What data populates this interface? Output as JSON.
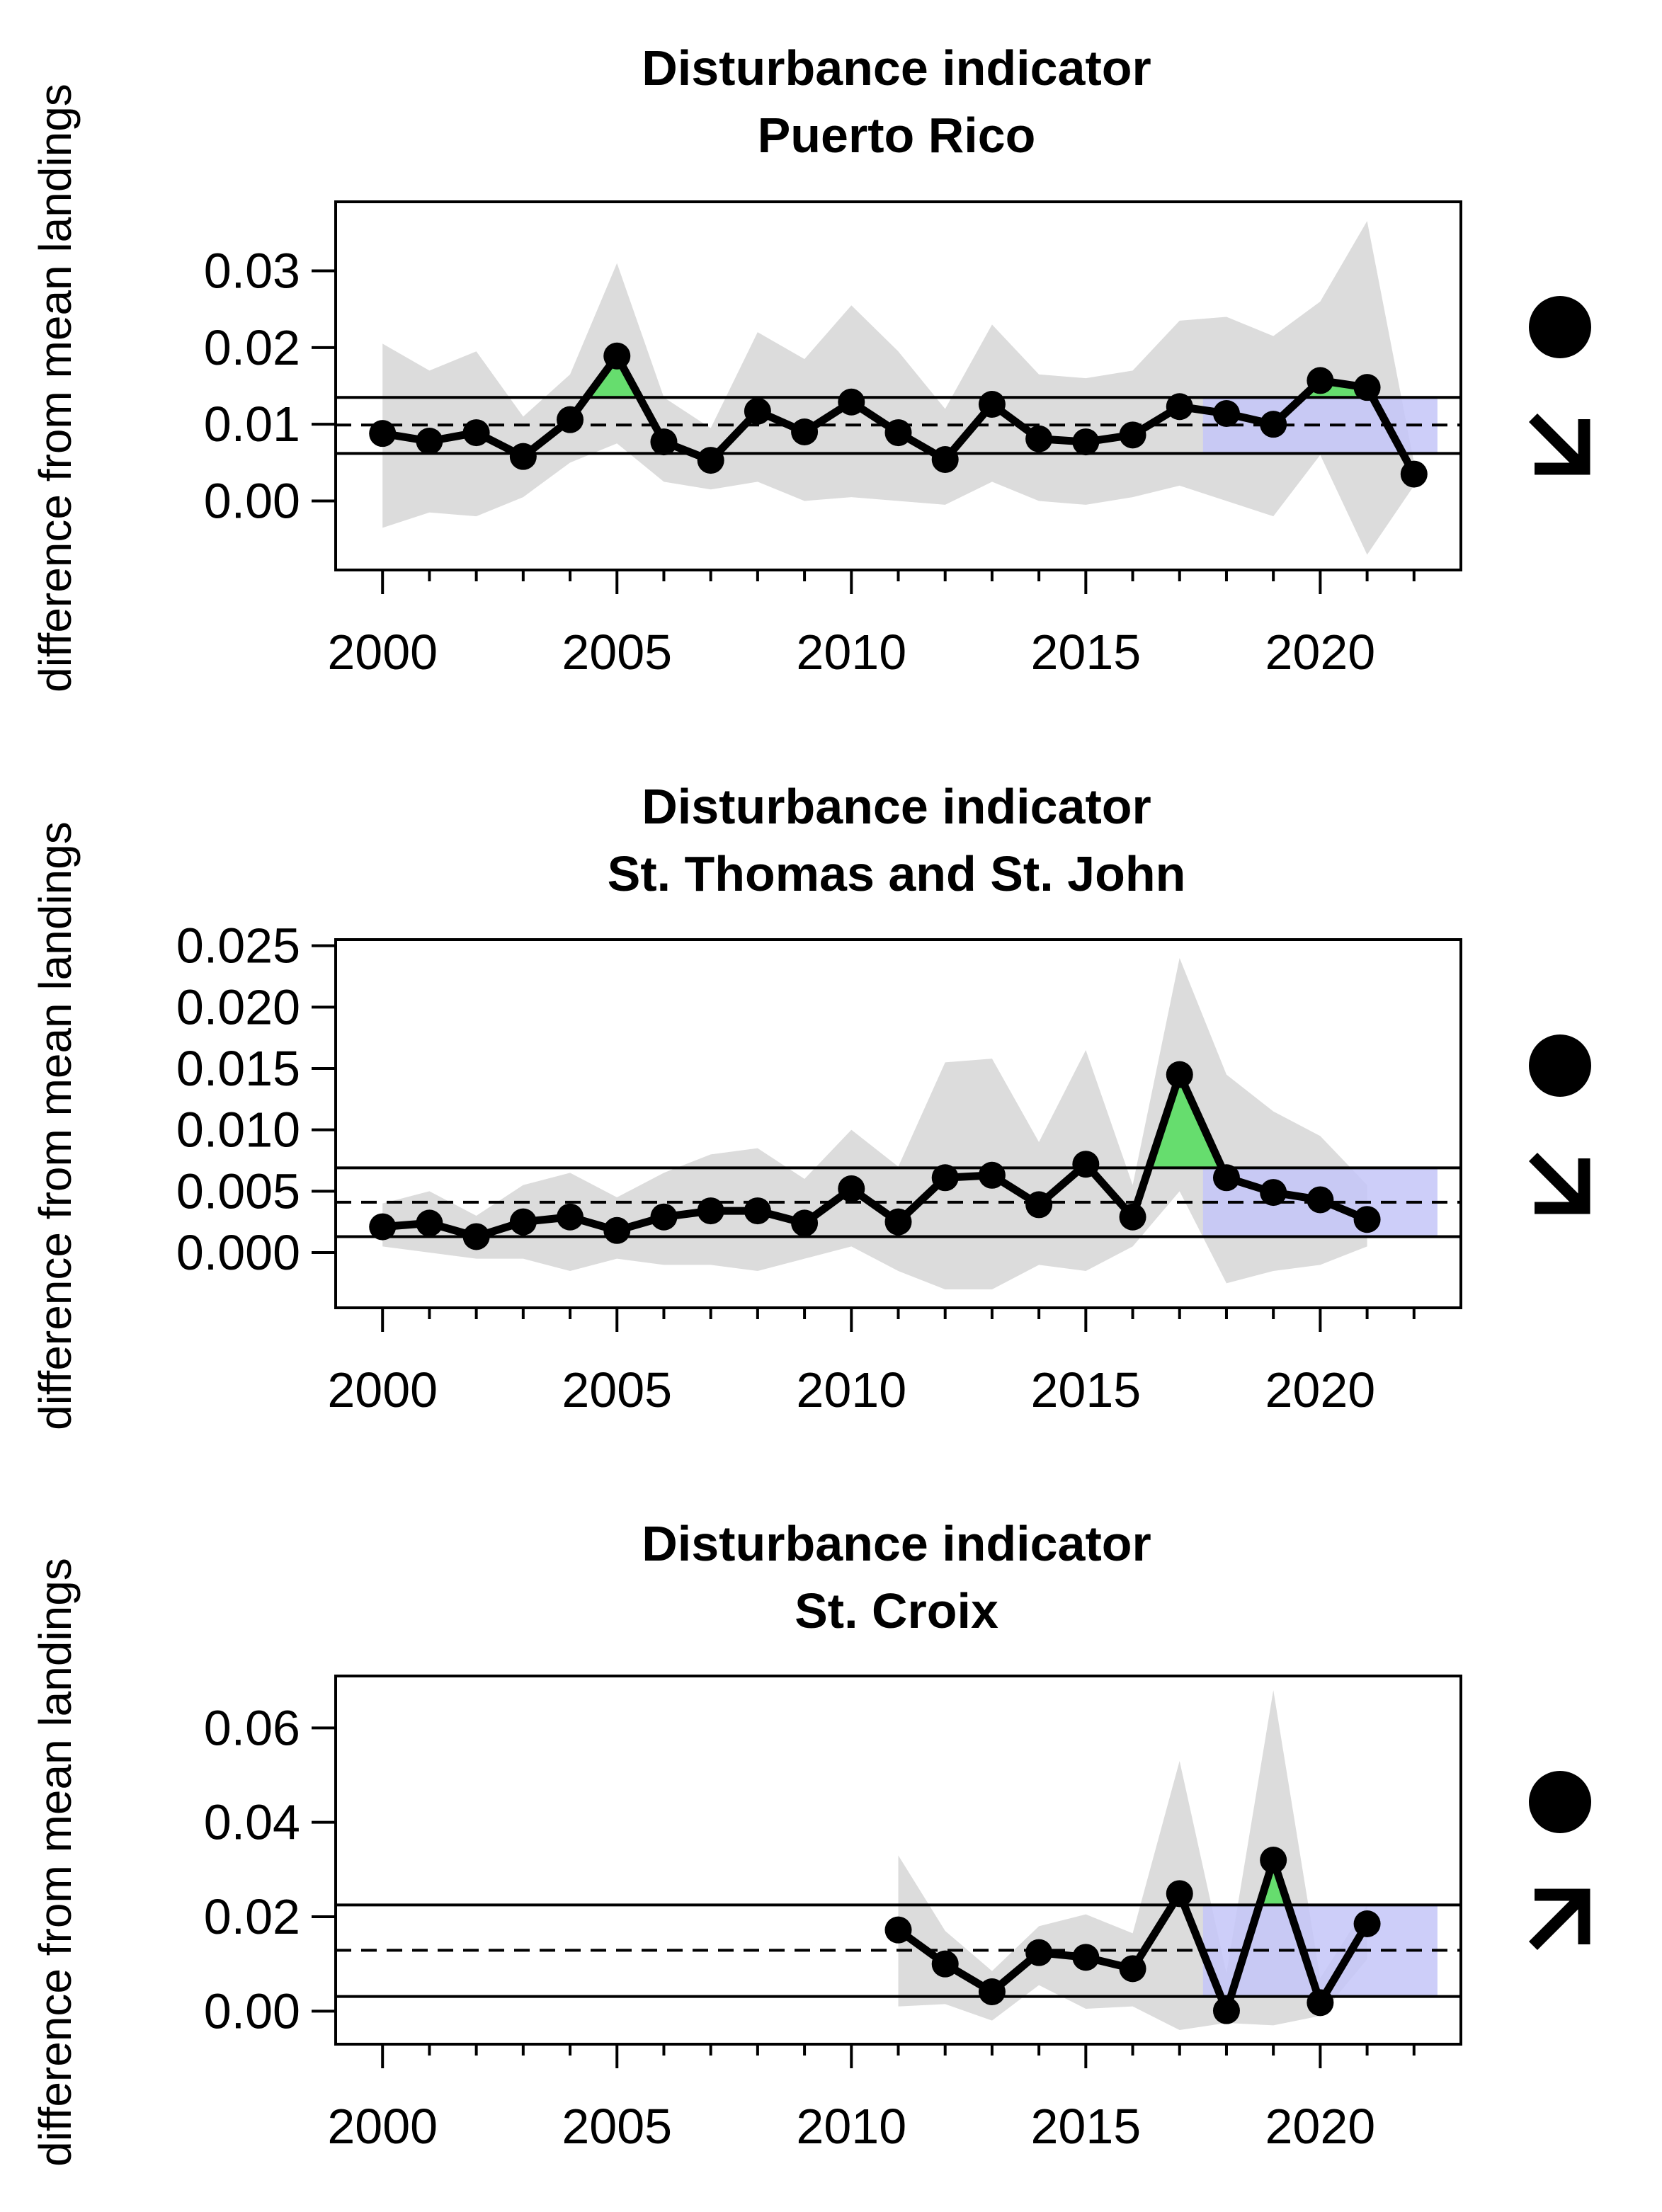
{
  "colors": {
    "ci_band": "#dcdcdc",
    "above_fill": "#66dd6e",
    "recent_window": "#c4c6f8",
    "line": "#000000"
  },
  "chart_data": [
    {
      "type": "line",
      "title_line1": "Disturbance indicator",
      "title_line2": "Puerto Rico",
      "ylabel": "difference from mean landings",
      "xlim": [
        1999,
        2023
      ],
      "ylim": [
        -0.009,
        0.039
      ],
      "xticks": [
        2000,
        2005,
        2010,
        2015,
        2020
      ],
      "yticks": [
        0.0,
        0.01,
        0.02,
        0.03
      ],
      "ytick_labels": [
        "0.00",
        "0.01",
        "0.02",
        "0.03"
      ],
      "mean": 0.0099,
      "upper_sd": 0.0135,
      "lower_sd": 0.0062,
      "recent_window": [
        2017.5,
        2022.5
      ],
      "trend_mean_symbol": "circle",
      "trend_slope_symbol": "arrow-down-right",
      "x": [
        2000,
        2001,
        2002,
        2003,
        2004,
        2005,
        2006,
        2007,
        2008,
        2009,
        2010,
        2011,
        2012,
        2013,
        2014,
        2015,
        2016,
        2017,
        2018,
        2019,
        2020,
        2021,
        2022
      ],
      "y": [
        0.0088,
        0.0078,
        0.0089,
        0.0058,
        0.0106,
        0.0189,
        0.0077,
        0.0053,
        0.0117,
        0.009,
        0.0129,
        0.0089,
        0.0054,
        0.0126,
        0.0081,
        0.0077,
        0.0086,
        0.0123,
        0.0114,
        0.01,
        0.0157,
        0.0148,
        0.0035
      ],
      "ci_upper": [
        0.0205,
        0.017,
        0.0195,
        0.011,
        0.0165,
        0.031,
        0.0135,
        0.0095,
        0.022,
        0.0185,
        0.0255,
        0.0195,
        0.012,
        0.023,
        0.0165,
        0.016,
        0.017,
        0.0235,
        0.024,
        0.0215,
        0.026,
        0.0365,
        0.005
      ],
      "ci_lower": [
        -0.0035,
        -0.0015,
        -0.002,
        0.0005,
        0.005,
        0.0075,
        0.0025,
        0.0015,
        0.0025,
        0.0,
        0.0005,
        0.0,
        -0.0005,
        0.0025,
        0.0,
        -0.0005,
        0.0005,
        0.002,
        0.0,
        -0.002,
        0.006,
        -0.007,
        0.002
      ]
    },
    {
      "type": "line",
      "title_line1": "Disturbance indicator",
      "title_line2": "St. Thomas and St. John",
      "ylabel": "difference from mean landings",
      "xlim": [
        1999,
        2023
      ],
      "ylim": [
        -0.0045,
        0.0255
      ],
      "xticks": [
        2000,
        2005,
        2010,
        2015,
        2020
      ],
      "yticks": [
        0.0,
        0.005,
        0.01,
        0.015,
        0.02,
        0.025
      ],
      "ytick_labels": [
        "0.000",
        "0.005",
        "0.010",
        "0.015",
        "0.020",
        "0.025"
      ],
      "mean": 0.0041,
      "upper_sd": 0.0069,
      "lower_sd": 0.0013,
      "recent_window": [
        2017.5,
        2022.5
      ],
      "trend_mean_symbol": "circle",
      "trend_slope_symbol": "arrow-down-right",
      "x": [
        2000,
        2001,
        2002,
        2003,
        2004,
        2005,
        2006,
        2007,
        2008,
        2009,
        2010,
        2011,
        2012,
        2013,
        2014,
        2015,
        2016,
        2017,
        2018,
        2019,
        2020,
        2021
      ],
      "y": [
        0.0021,
        0.0024,
        0.0013,
        0.0025,
        0.0029,
        0.0018,
        0.0029,
        0.0034,
        0.0034,
        0.0024,
        0.0052,
        0.0025,
        0.0061,
        0.0063,
        0.0039,
        0.0072,
        0.0029,
        0.0145,
        0.0061,
        0.0049,
        0.0043,
        0.0027
      ],
      "ci_upper": [
        0.004,
        0.005,
        0.003,
        0.0055,
        0.0065,
        0.0045,
        0.0065,
        0.008,
        0.0085,
        0.006,
        0.01,
        0.007,
        0.0155,
        0.0158,
        0.009,
        0.0165,
        0.0055,
        0.024,
        0.0145,
        0.0115,
        0.0095,
        0.0055
      ],
      "ci_lower": [
        0.0005,
        0.0,
        -0.0005,
        -0.0005,
        -0.0015,
        -0.0005,
        -0.001,
        -0.001,
        -0.0015,
        -0.0005,
        0.0005,
        -0.0015,
        -0.003,
        -0.003,
        -0.001,
        -0.0015,
        0.0005,
        0.005,
        -0.0025,
        -0.0015,
        -0.001,
        0.0005
      ]
    },
    {
      "type": "line",
      "title_line1": "Disturbance indicator",
      "title_line2": "St. Croix",
      "ylabel": "difference from mean landings",
      "xlim": [
        1999,
        2023
      ],
      "ylim": [
        -0.007,
        0.071
      ],
      "xticks": [
        2000,
        2005,
        2010,
        2015,
        2020
      ],
      "yticks": [
        0.0,
        0.02,
        0.04,
        0.06
      ],
      "ytick_labels": [
        "0.00",
        "0.02",
        "0.04",
        "0.06"
      ],
      "mean": 0.0129,
      "upper_sd": 0.0225,
      "lower_sd": 0.0031,
      "recent_window": [
        2017.5,
        2022.5
      ],
      "trend_mean_symbol": "circle",
      "trend_slope_symbol": "arrow-up-right",
      "x": [
        2011,
        2012,
        2013,
        2014,
        2015,
        2016,
        2017,
        2018,
        2019,
        2020,
        2021
      ],
      "y": [
        0.0172,
        0.01,
        0.0041,
        0.0124,
        0.0114,
        0.009,
        0.0249,
        0.0001,
        0.032,
        0.0018,
        0.0185
      ],
      "ci_upper": [
        0.033,
        0.017,
        0.0085,
        0.018,
        0.0205,
        0.0165,
        0.053,
        0.008,
        0.068,
        0.007,
        0.0225
      ],
      "ci_lower": [
        0.001,
        0.0015,
        -0.002,
        0.0055,
        0.0005,
        0.001,
        -0.004,
        -0.0025,
        -0.003,
        -0.001,
        0.011
      ]
    }
  ]
}
